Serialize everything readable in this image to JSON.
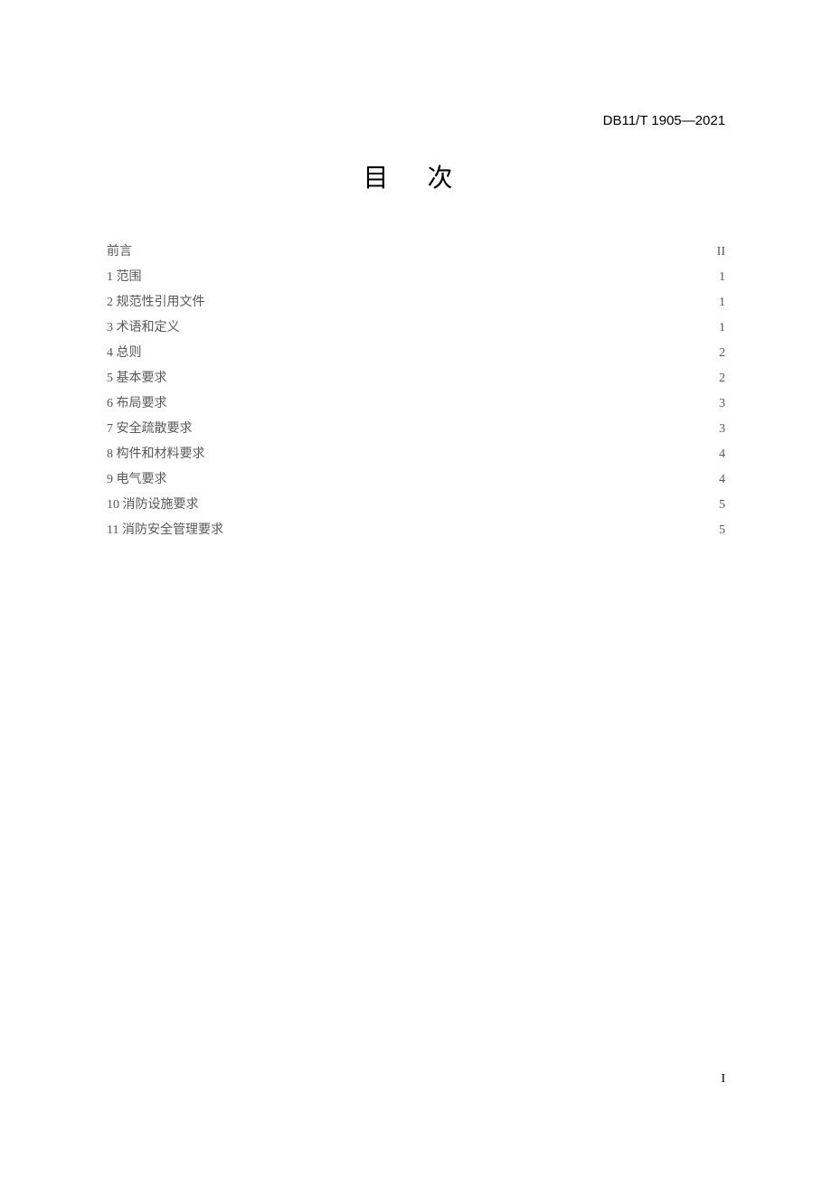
{
  "header_code": "DB11/T 1905—2021",
  "title": "目  次",
  "toc": [
    {
      "label": "前言",
      "page": "II"
    },
    {
      "label": "1 范围",
      "page": "1"
    },
    {
      "label": "2 规范性引用文件",
      "page": "1"
    },
    {
      "label": "3 术语和定义",
      "page": "1"
    },
    {
      "label": "4 总则",
      "page": "2"
    },
    {
      "label": "5 基本要求",
      "page": "2"
    },
    {
      "label": "6 布局要求",
      "page": "3"
    },
    {
      "label": "7 安全疏散要求",
      "page": "3"
    },
    {
      "label": "8 构件和材料要求",
      "page": "4"
    },
    {
      "label": "9 电气要求",
      "page": "4"
    },
    {
      "label": "10 消防设施要求",
      "page": "5"
    },
    {
      "label": "11 消防安全管理要求",
      "page": "5"
    }
  ],
  "page_number": "I"
}
